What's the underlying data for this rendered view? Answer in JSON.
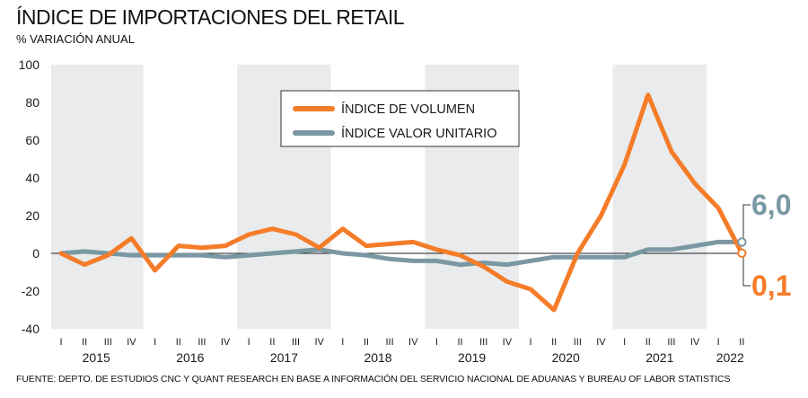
{
  "header": {
    "title": "ÍNDICE DE IMPORTACIONES DEL RETAIL",
    "subtitle": "% VARIACIÓN ANUAL"
  },
  "source": "FUENTE: DEPTO. DE ESTUDIOS CNC Y QUANT RESEARCH EN BASE A INFORMACIÓN DEL SERVICIO NACIONAL DE ADUANAS Y BUREAU OF LABOR STATISTICS",
  "chart_data": {
    "type": "line",
    "title": "ÍNDICE DE IMPORTACIONES DEL RETAIL",
    "subtitle": "% VARIACIÓN ANUAL",
    "ylim": [
      -40,
      100
    ],
    "yticks": [
      -40,
      -20,
      0,
      20,
      40,
      60,
      80,
      100
    ],
    "years": [
      "2015",
      "2016",
      "2017",
      "2018",
      "2019",
      "2020",
      "2021",
      "2022"
    ],
    "quarters": [
      "I",
      "II",
      "III",
      "IV"
    ],
    "categories": [
      "2015-I",
      "2015-II",
      "2015-III",
      "2015-IV",
      "2016-I",
      "2016-II",
      "2016-III",
      "2016-IV",
      "2017-I",
      "2017-II",
      "2017-III",
      "2017-IV",
      "2018-I",
      "2018-II",
      "2018-III",
      "2018-IV",
      "2019-I",
      "2019-II",
      "2019-III",
      "2019-IV",
      "2020-I",
      "2020-II",
      "2020-III",
      "2020-IV",
      "2021-I",
      "2021-II",
      "2021-III",
      "2021-IV",
      "2022-I",
      "2022-II"
    ],
    "grid": false,
    "shaded_years": [
      "2015",
      "2017",
      "2019",
      "2021"
    ],
    "legend_position": "top-center",
    "series": [
      {
        "name": "ÍNDICE DE VOLUMEN",
        "color": "#f57c28",
        "values": [
          0,
          -6,
          -1,
          8,
          -9,
          4,
          3,
          4,
          10,
          13,
          10,
          3,
          13,
          4,
          5,
          6,
          2,
          -1,
          -7,
          -15,
          -19,
          -30,
          0,
          20,
          47,
          84,
          54,
          37,
          24,
          0.1
        ],
        "end_label": "0,1"
      },
      {
        "name": "ÍNDICE VALOR UNITARIO",
        "color": "#7a98a3",
        "values": [
          0,
          1,
          0,
          -1,
          -1,
          -1,
          -1,
          -2,
          -1,
          0,
          1,
          2,
          0,
          -1,
          -3,
          -4,
          -4,
          -6,
          -5,
          -6,
          -4,
          -2,
          -2,
          -2,
          -2,
          2,
          2,
          4,
          6,
          6.0
        ],
        "end_label": "6,0"
      }
    ]
  }
}
